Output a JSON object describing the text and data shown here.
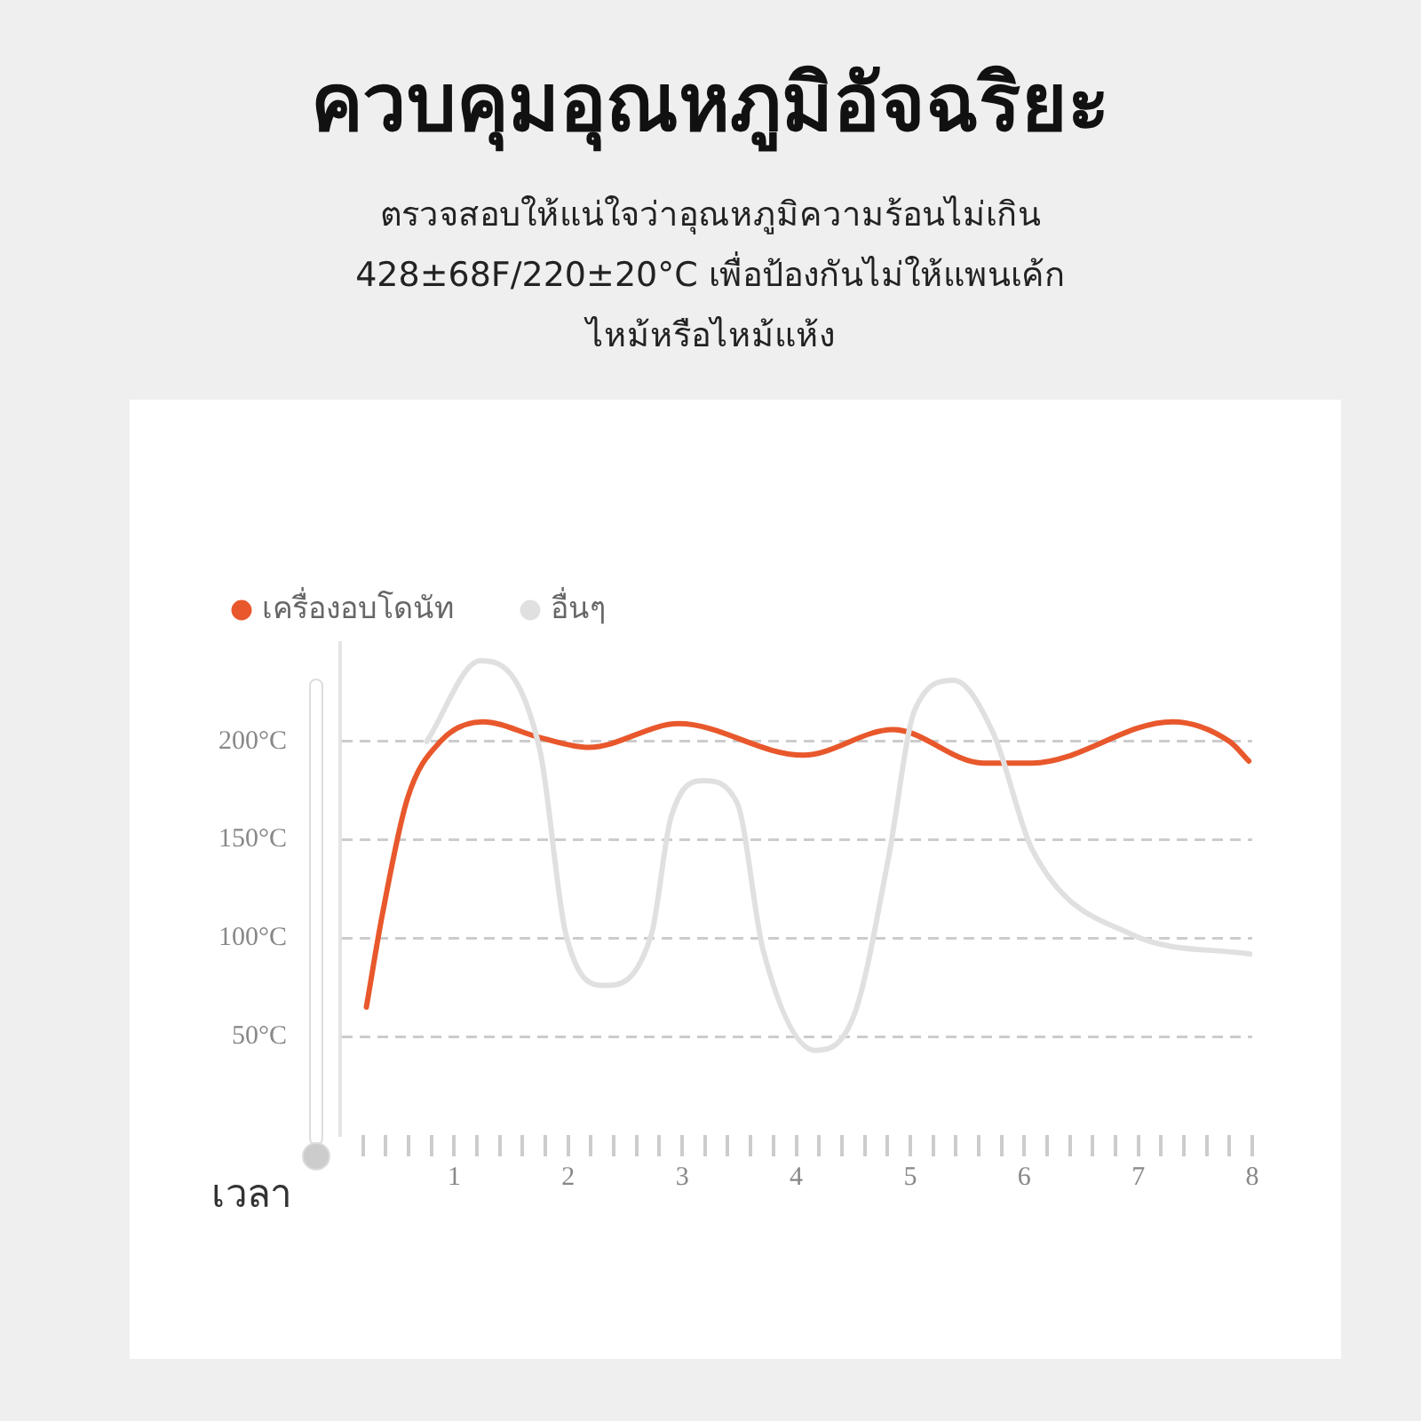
{
  "chart_data": {
    "type": "line",
    "title": "ควบคุมอุณหภูมิอัจฉริยะ",
    "subtitle": "ตรวจสอบให้แน่ใจว่าอุณหภูมิความร้อนไม่เกิน\n428±68F/220±20°C เพื่อป้องกันไม่ให้แพนเค้ก\nไหม้หรือไหม้แห้ง",
    "xlabel": "เวลา",
    "series": [
      {
        "name": "เครื่องอบโดนัท",
        "color": "#e8582c",
        "x": [
          0.23,
          0.37,
          0.59,
          0.88,
          1.25,
          1.75,
          2.18,
          2.97,
          4.06,
          4.85,
          5.64,
          6.07,
          7.3,
          7.8,
          7.97
        ],
        "values": [
          65,
          112,
          171,
          200,
          210,
          202,
          197,
          209,
          193,
          206,
          189,
          189,
          210,
          200,
          190
        ]
      },
      {
        "name": "อื่นๆ",
        "color": "#e0e0e0",
        "x": [
          0.76,
          1.23,
          1.75,
          1.98,
          2.32,
          2.73,
          2.9,
          3.19,
          3.48,
          3.71,
          4.17,
          4.52,
          4.81,
          5.04,
          5.38,
          5.73,
          6.07,
          6.94,
          7.98
        ],
        "values": [
          200,
          241,
          196,
          102,
          76,
          102,
          161,
          180,
          169,
          94,
          43,
          63,
          141,
          216,
          231,
          204,
          145,
          102,
          92
        ]
      }
    ],
    "xlim": [
      0,
      8
    ],
    "xticks": [
      {
        "value": 0.2,
        "label": null
      },
      {
        "value": 0.4,
        "label": null
      },
      {
        "value": 0.6,
        "label": null
      },
      {
        "value": 0.8,
        "label": null
      },
      1,
      {
        "value": 1.2,
        "label": null
      },
      {
        "value": 1.4,
        "label": null
      },
      {
        "value": 1.6,
        "label": null
      },
      {
        "value": 1.8,
        "label": null
      },
      2,
      {
        "value": 2.2,
        "label": null
      },
      {
        "value": 2.4,
        "label": null
      },
      {
        "value": 2.6,
        "label": null
      },
      {
        "value": 2.8,
        "label": null
      },
      3,
      {
        "value": 3.2,
        "label": null
      },
      {
        "value": 3.4,
        "label": null
      },
      {
        "value": 3.6,
        "label": null
      },
      {
        "value": 3.8,
        "label": null
      },
      4,
      {
        "value": 4.2,
        "label": null
      },
      {
        "value": 4.4,
        "label": null
      },
      {
        "value": 4.6,
        "label": null
      },
      {
        "value": 4.8,
        "label": null
      },
      5,
      {
        "value": 5.2,
        "label": null
      },
      {
        "value": 5.4,
        "label": null
      },
      {
        "value": 5.6,
        "label": null
      },
      {
        "value": 5.8,
        "label": null
      },
      6,
      {
        "value": 6.2,
        "label": null
      },
      {
        "value": 6.4,
        "label": null
      },
      {
        "value": 6.6,
        "label": null
      },
      {
        "value": 6.8,
        "label": null
      },
      7,
      {
        "value": 7.2,
        "label": null
      },
      {
        "value": 7.4,
        "label": null
      },
      {
        "value": 7.6,
        "label": null
      },
      {
        "value": 7.8,
        "label": null
      },
      8
    ],
    "ylim": [
      0,
      250
    ],
    "yticks": [
      {
        "value": 50,
        "label": "50°C"
      },
      {
        "value": 100,
        "label": "100°C"
      },
      {
        "value": 150,
        "label": "150°C"
      },
      {
        "value": 200,
        "label": "200°C"
      }
    ],
    "grid": "y",
    "legend": "top left",
    "marker": "none",
    "line_style": "solid"
  }
}
